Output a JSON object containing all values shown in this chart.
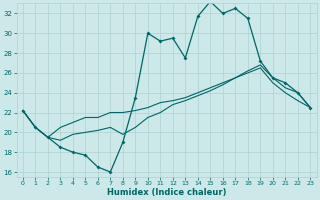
{
  "xlabel": "Humidex (Indice chaleur)",
  "bg_color": "#cce8e8",
  "grid_color": "#b0d0d0",
  "line_color": "#006666",
  "xlim": [
    -0.5,
    23.5
  ],
  "ylim": [
    15.5,
    33.0
  ],
  "yticks": [
    16,
    18,
    20,
    22,
    24,
    26,
    28,
    30,
    32
  ],
  "xticks": [
    0,
    1,
    2,
    3,
    4,
    5,
    6,
    7,
    8,
    9,
    10,
    11,
    12,
    13,
    14,
    15,
    16,
    17,
    18,
    19,
    20,
    21,
    22,
    23
  ],
  "series1_x": [
    0,
    1,
    2,
    3,
    4,
    5,
    6,
    7,
    8,
    9,
    10,
    11,
    12,
    13,
    14,
    15,
    16,
    17,
    18,
    19,
    20,
    21,
    22,
    23
  ],
  "series1_y": [
    22.2,
    20.5,
    19.5,
    18.5,
    18.0,
    17.7,
    16.5,
    16.0,
    19.0,
    23.5,
    30.0,
    29.2,
    29.5,
    27.5,
    31.7,
    33.2,
    32.0,
    32.5,
    31.5,
    27.2,
    25.5,
    25.0,
    24.0,
    22.5
  ],
  "series2_x": [
    0,
    1,
    2,
    3,
    4,
    5,
    6,
    7,
    8,
    9,
    10,
    11,
    12,
    13,
    14,
    15,
    16,
    17,
    18,
    19,
    20,
    21,
    22,
    23
  ],
  "series2_y": [
    22.2,
    20.5,
    19.5,
    19.2,
    19.8,
    20.0,
    20.2,
    20.5,
    19.8,
    20.5,
    21.5,
    22.0,
    22.8,
    23.2,
    23.7,
    24.2,
    24.8,
    25.5,
    26.2,
    26.8,
    25.5,
    24.5,
    24.0,
    22.5
  ],
  "series3_x": [
    0,
    1,
    2,
    3,
    4,
    5,
    6,
    7,
    8,
    9,
    10,
    11,
    12,
    13,
    14,
    15,
    16,
    17,
    18,
    19,
    20,
    21,
    22,
    23
  ],
  "series3_y": [
    22.2,
    20.5,
    19.5,
    20.5,
    21.0,
    21.5,
    21.5,
    22.0,
    22.0,
    22.2,
    22.5,
    23.0,
    23.2,
    23.5,
    24.0,
    24.5,
    25.0,
    25.5,
    26.0,
    26.5,
    25.0,
    24.0,
    23.2,
    22.5
  ]
}
